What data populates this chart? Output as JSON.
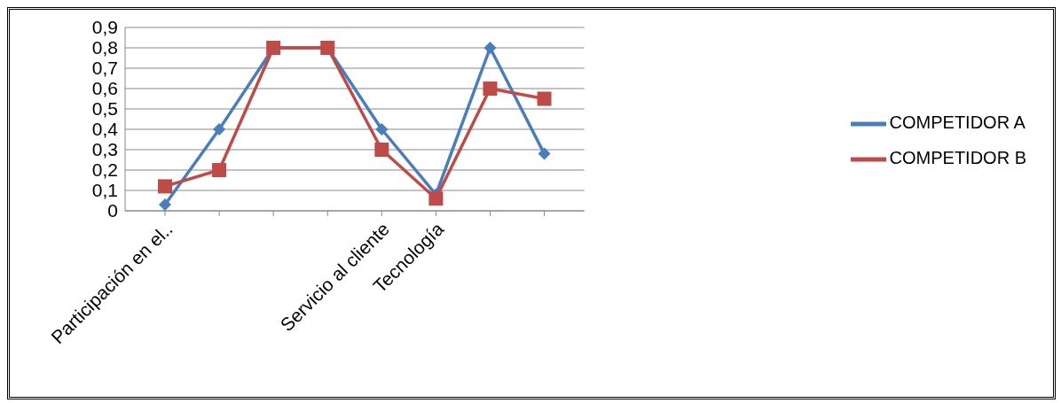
{
  "chart_data": {
    "type": "line",
    "categories": [
      "Participación en el..",
      null,
      null,
      null,
      "Servicio al cliente",
      "Tecnología",
      null,
      null
    ],
    "series": [
      {
        "name": "COMPETIDOR A",
        "color": "#4a7ebb",
        "marker": "diamond",
        "values": [
          0.03,
          0.4,
          0.8,
          0.8,
          0.4,
          0.08,
          0.8,
          0.28
        ]
      },
      {
        "name": "COMPETIDOR B",
        "color": "#be4b48",
        "marker": "square",
        "values": [
          0.12,
          0.2,
          0.8,
          0.8,
          0.3,
          0.06,
          0.6,
          0.55
        ]
      }
    ],
    "ylim": [
      0,
      0.9
    ],
    "yticks": [
      0,
      {
        "value": 0.1,
        "label": "0,1"
      },
      {
        "value": 0.2,
        "label": "0,2"
      },
      {
        "value": 0.3,
        "label": "0,3"
      },
      {
        "value": 0.4,
        "label": "0,4"
      },
      {
        "value": 0.5,
        "label": "0,5"
      },
      {
        "value": 0.6,
        "label": "0,6"
      },
      {
        "value": 0.7,
        "label": "0,7"
      },
      {
        "value": 0.8,
        "label": "0,8"
      },
      {
        "value": 0.9,
        "label": "0,9"
      }
    ],
    "grid": "y",
    "legend": "right",
    "line_style": "solid"
  }
}
